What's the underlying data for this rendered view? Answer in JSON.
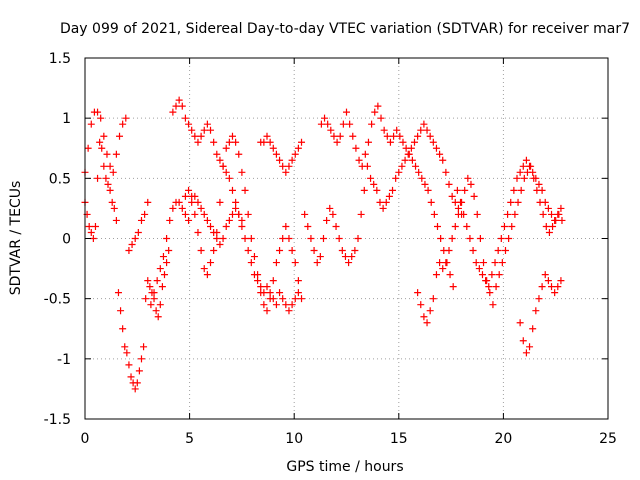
{
  "chart_data": {
    "type": "scatter",
    "title": "Day 099 of 2021, Sidereal Day-to-day VTEC variation (SDTVAR) for receiver mar7",
    "xlabel": "GPS time / hours",
    "ylabel": "SDTVAR / TECUs",
    "xlim": [
      0,
      25
    ],
    "ylim": [
      -1.5,
      1.5
    ],
    "xticks": [
      "0",
      "5",
      "10",
      "15",
      "20",
      "25"
    ],
    "yticks": [
      "-1.5",
      "-1",
      "-0.5",
      "0",
      "0.5",
      "1",
      "1.5"
    ],
    "grid": true,
    "marker": "+",
    "color": "#ff0000",
    "series": [
      {
        "name": "s1",
        "x": [
          0.0,
          0.15,
          0.3,
          0.45,
          0.6,
          0.75,
          0.9,
          1.05,
          1.2,
          1.35,
          1.5,
          1.65,
          1.8,
          1.95,
          2.1,
          2.25,
          2.4,
          2.55,
          2.7,
          2.85,
          3.0,
          3.15,
          3.3,
          3.45,
          3.6,
          3.75,
          3.9,
          4.05,
          4.2,
          4.35,
          4.5,
          4.65,
          4.8,
          4.95,
          5.1,
          5.25,
          5.4,
          5.55,
          5.7,
          5.85,
          6.0,
          6.15,
          6.3,
          6.45,
          6.6,
          6.75,
          6.9,
          7.05,
          7.2,
          7.35,
          7.5
        ],
        "y": [
          0.55,
          0.75,
          0.95,
          1.05,
          1.05,
          1.0,
          0.85,
          0.7,
          0.6,
          0.55,
          0.7,
          0.85,
          0.95,
          1.0,
          -0.1,
          -0.05,
          0.0,
          0.05,
          0.15,
          0.2,
          0.3,
          -0.55,
          -0.45,
          -0.35,
          -0.25,
          -0.15,
          0.0,
          0.15,
          0.25,
          0.3,
          0.3,
          0.25,
          0.2,
          0.15,
          0.3,
          0.35,
          0.3,
          0.25,
          0.2,
          0.15,
          0.1,
          0.05,
          0.0,
          -0.05,
          0.0,
          0.1,
          0.15,
          0.2,
          0.25,
          0.2,
          0.15
        ]
      },
      {
        "name": "s2",
        "x": [
          0.0,
          0.1,
          0.2,
          0.3,
          0.4,
          0.5,
          0.6,
          0.7,
          0.8,
          0.9,
          1.0,
          1.1,
          1.2,
          1.3,
          1.4,
          1.5,
          1.6,
          1.7,
          1.8,
          1.9,
          2.0,
          2.1,
          2.2,
          2.3,
          2.4,
          2.5,
          2.6,
          2.7,
          2.8,
          2.9,
          3.0,
          3.1,
          3.2,
          3.3,
          3.4,
          3.5,
          3.6,
          3.7,
          3.8,
          3.9,
          4.0
        ],
        "y": [
          0.3,
          0.2,
          0.1,
          0.05,
          0.0,
          0.1,
          0.5,
          0.8,
          0.75,
          0.6,
          0.5,
          0.45,
          0.4,
          0.3,
          0.25,
          0.15,
          -0.45,
          -0.6,
          -0.75,
          -0.9,
          -0.95,
          -1.05,
          -1.15,
          -1.2,
          -1.25,
          -1.2,
          -1.1,
          -1.0,
          -0.9,
          -0.5,
          -0.35,
          -0.4,
          -0.45,
          -0.5,
          -0.6,
          -0.65,
          -0.55,
          -0.4,
          -0.3,
          -0.2,
          -0.1
        ]
      },
      {
        "name": "s3",
        "x": [
          4.2,
          4.35,
          4.5,
          4.65,
          4.8,
          4.95,
          5.1,
          5.25,
          5.4,
          5.55,
          5.7,
          5.85,
          6.0,
          6.15,
          6.3,
          6.45,
          6.6,
          6.75,
          6.9,
          7.05,
          7.2,
          7.35,
          7.5,
          7.65,
          7.8,
          7.95,
          8.1,
          8.25,
          8.4,
          8.55,
          8.7,
          8.85,
          9.0,
          9.15,
          9.3,
          9.45,
          9.6,
          9.75,
          9.9,
          10.05,
          10.2
        ],
        "y": [
          1.05,
          1.1,
          1.15,
          1.1,
          1.0,
          0.95,
          0.9,
          0.85,
          0.8,
          0.85,
          0.9,
          0.95,
          0.9,
          0.8,
          0.7,
          0.65,
          0.6,
          0.55,
          0.5,
          0.4,
          0.3,
          0.2,
          0.1,
          0.0,
          -0.1,
          -0.2,
          -0.3,
          -0.35,
          -0.4,
          -0.45,
          -0.4,
          -0.45,
          -0.5,
          -0.55,
          -0.45,
          -0.5,
          -0.55,
          -0.6,
          -0.55,
          -0.5,
          -0.45
        ]
      },
      {
        "name": "s4",
        "x": [
          4.8,
          4.95,
          5.1,
          5.25,
          5.4,
          5.55,
          5.7,
          5.85,
          6.0,
          6.15,
          6.3,
          6.45,
          6.6,
          6.75,
          6.9,
          7.05,
          7.2,
          7.35,
          7.5,
          7.65,
          7.8,
          7.95,
          8.1,
          8.25,
          8.4,
          8.55,
          8.7,
          8.85,
          9.0,
          9.15,
          9.3,
          9.45,
          9.6,
          9.75,
          9.9,
          10.05,
          10.2,
          10.35
        ],
        "y": [
          0.35,
          0.4,
          0.35,
          0.2,
          0.05,
          -0.1,
          -0.25,
          -0.3,
          -0.2,
          -0.1,
          0.05,
          0.3,
          0.6,
          0.75,
          0.8,
          0.85,
          0.8,
          0.7,
          0.55,
          0.4,
          0.2,
          0.0,
          -0.15,
          -0.3,
          -0.45,
          -0.55,
          -0.6,
          -0.5,
          -0.35,
          -0.2,
          -0.1,
          0.0,
          0.1,
          0.0,
          -0.1,
          -0.2,
          -0.35,
          -0.5
        ]
      },
      {
        "name": "s5",
        "x": [
          8.4,
          8.55,
          8.7,
          8.85,
          9.0,
          9.15,
          9.3,
          9.45,
          9.6,
          9.75,
          9.9,
          10.05,
          10.2,
          10.35
        ],
        "y": [
          0.8,
          0.8,
          0.85,
          0.8,
          0.75,
          0.7,
          0.65,
          0.6,
          0.55,
          0.6,
          0.65,
          0.7,
          0.75,
          0.8
        ]
      },
      {
        "name": "s6",
        "x": [
          10.5,
          10.65,
          10.8,
          10.95,
          11.1,
          11.25,
          11.4,
          11.55,
          11.7,
          11.85,
          12.0,
          12.15,
          12.3,
          12.45,
          12.6,
          12.75,
          12.9,
          13.05,
          13.2,
          13.35,
          13.5,
          13.65,
          13.8,
          13.95,
          14.1,
          14.25,
          14.4,
          14.55,
          14.7,
          14.85,
          15.0,
          15.15,
          15.3,
          15.45,
          15.6,
          15.75,
          15.9,
          16.05,
          16.2,
          16.35,
          16.5,
          16.65,
          16.8,
          16.95,
          17.1,
          17.25,
          17.4,
          17.55,
          17.7,
          17.85,
          18.0
        ],
        "y": [
          0.2,
          0.1,
          0.0,
          -0.1,
          -0.2,
          -0.15,
          0.0,
          0.15,
          0.25,
          0.2,
          0.1,
          0.0,
          -0.1,
          -0.15,
          -0.2,
          -0.15,
          -0.1,
          0.0,
          0.2,
          0.4,
          0.6,
          0.5,
          0.45,
          0.4,
          0.3,
          0.25,
          0.3,
          0.35,
          0.4,
          0.5,
          0.55,
          0.6,
          0.65,
          0.7,
          0.75,
          0.8,
          0.85,
          0.9,
          0.95,
          0.9,
          0.85,
          0.8,
          0.75,
          0.7,
          0.65,
          0.55,
          0.45,
          0.35,
          0.3,
          0.25,
          0.2
        ]
      },
      {
        "name": "s7",
        "x": [
          11.3,
          11.45,
          11.6,
          11.75,
          11.9,
          12.05,
          12.2,
          12.35,
          12.5,
          12.65,
          12.8,
          12.95,
          13.1,
          13.25,
          13.4,
          13.55,
          13.7,
          13.85,
          14.0,
          14.15,
          14.3,
          14.45,
          14.6,
          14.75,
          14.9,
          15.05,
          15.2,
          15.35,
          15.5,
          15.65,
          15.8,
          15.95,
          16.1,
          16.25,
          16.4,
          16.55,
          16.7,
          16.85,
          17.0,
          17.15,
          17.3,
          17.45,
          17.6
        ],
        "y": [
          0.95,
          1.0,
          0.95,
          0.9,
          0.85,
          0.8,
          0.85,
          0.95,
          1.05,
          0.95,
          0.85,
          0.75,
          0.65,
          0.6,
          0.7,
          0.8,
          0.95,
          1.05,
          1.1,
          1.0,
          0.9,
          0.85,
          0.8,
          0.85,
          0.9,
          0.85,
          0.8,
          0.75,
          0.7,
          0.65,
          0.6,
          0.55,
          0.5,
          0.45,
          0.4,
          0.3,
          0.2,
          0.1,
          0.0,
          -0.1,
          -0.2,
          -0.3,
          -0.4
        ]
      },
      {
        "name": "s8",
        "x": [
          15.9,
          16.05,
          16.2,
          16.35,
          16.5,
          16.65,
          16.8,
          16.95,
          17.1,
          17.25,
          17.4,
          17.55,
          17.7,
          17.85,
          18.0,
          18.15,
          18.3,
          18.45,
          18.6,
          18.75,
          18.9,
          19.05,
          19.2,
          19.35,
          19.5,
          19.65,
          19.8,
          19.95,
          20.1,
          20.25,
          20.4,
          20.55,
          20.7,
          20.85,
          21.0,
          21.15,
          21.3,
          21.45,
          21.6,
          21.75,
          21.9,
          22.05,
          22.2,
          22.35,
          22.5,
          22.65,
          22.8
        ],
        "y": [
          -0.45,
          -0.55,
          -0.65,
          -0.7,
          -0.6,
          -0.5,
          -0.3,
          -0.2,
          -0.25,
          -0.2,
          -0.1,
          0.0,
          0.1,
          0.2,
          0.3,
          0.4,
          0.5,
          0.45,
          0.35,
          0.2,
          0.0,
          -0.2,
          -0.35,
          -0.45,
          -0.55,
          -0.4,
          -0.3,
          -0.2,
          -0.1,
          0.0,
          0.1,
          0.2,
          0.3,
          0.4,
          0.5,
          0.55,
          0.6,
          0.5,
          0.4,
          0.3,
          0.2,
          0.1,
          0.05,
          0.1,
          0.15,
          0.2,
          0.15
        ]
      },
      {
        "name": "s9",
        "x": [
          17.8,
          17.95,
          18.1,
          18.25,
          18.4,
          18.55,
          18.7,
          18.85,
          19.0,
          19.15,
          19.3,
          19.45,
          19.6,
          19.75,
          19.9,
          20.05,
          20.2,
          20.35,
          20.5,
          20.65,
          20.8,
          20.95,
          21.1,
          21.25,
          21.4,
          21.55,
          21.7,
          21.85,
          22.0,
          22.15,
          22.3,
          22.45,
          22.6,
          22.75
        ],
        "y": [
          0.4,
          0.3,
          0.2,
          0.1,
          0.0,
          -0.1,
          -0.2,
          -0.25,
          -0.3,
          -0.35,
          -0.4,
          -0.3,
          -0.2,
          -0.1,
          0.0,
          0.1,
          0.2,
          0.3,
          0.4,
          0.5,
          0.55,
          0.6,
          0.65,
          0.6,
          0.55,
          0.5,
          0.45,
          0.4,
          0.3,
          0.25,
          0.2,
          0.15,
          0.2,
          0.25
        ]
      },
      {
        "name": "s10",
        "x": [
          20.8,
          20.95,
          21.1,
          21.25,
          21.4,
          21.55,
          21.7,
          21.85,
          22.0,
          22.15,
          22.3,
          22.45,
          22.6,
          22.75
        ],
        "y": [
          -0.7,
          -0.85,
          -0.95,
          -0.9,
          -0.75,
          -0.6,
          -0.5,
          -0.4,
          -0.3,
          -0.35,
          -0.4,
          -0.45,
          -0.4,
          -0.35
        ]
      }
    ]
  }
}
